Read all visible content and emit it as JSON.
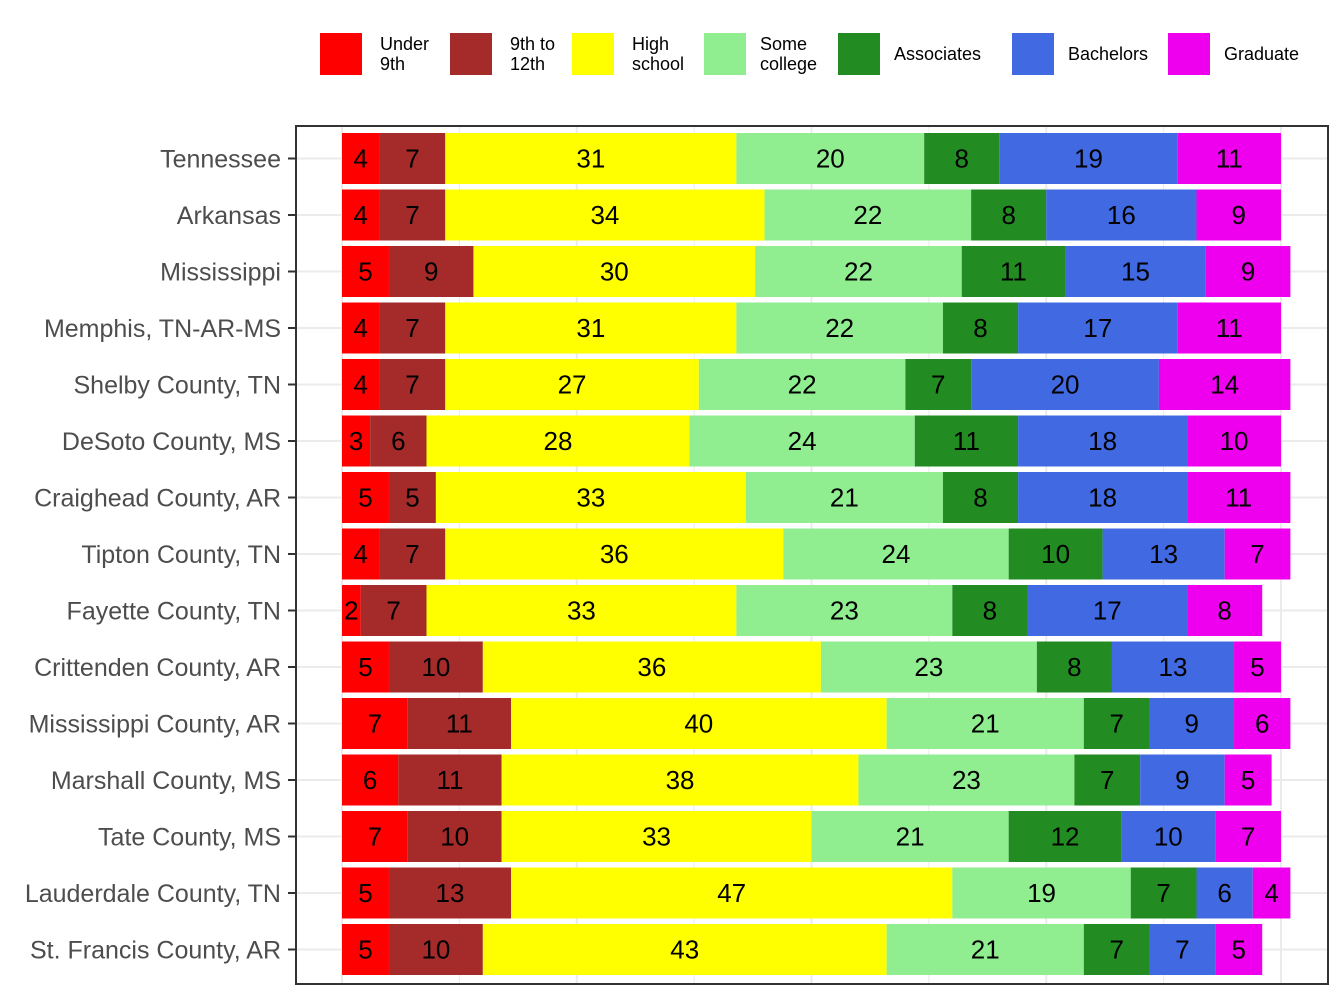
{
  "legend": {
    "items": [
      {
        "label": "Under\n9th",
        "color": "#ff0000"
      },
      {
        "label": "9th to\n12th",
        "color": "#a52a2a"
      },
      {
        "label": "High\nschool",
        "color": "#ffff00"
      },
      {
        "label": "Some\ncollege",
        "color": "#90ee90"
      },
      {
        "label": "Associates",
        "color": "#228b22"
      },
      {
        "label": "Bachelors",
        "color": "#4169e1"
      },
      {
        "label": "Graduate",
        "color": "#ee00ee"
      }
    ]
  },
  "chart_data": {
    "type": "bar",
    "orientation": "horizontal",
    "stacked": true,
    "title": "",
    "xlabel": "",
    "ylabel": "",
    "xlim": [
      0,
      100
    ],
    "grid": true,
    "legend_position": "top",
    "categories": [
      "Tennessee",
      "Arkansas",
      "Mississippi",
      "Memphis, TN-AR-MS",
      "Shelby County, TN",
      "DeSoto County, MS",
      "Craighead County, AR",
      "Tipton County, TN",
      "Fayette County, TN",
      "Crittenden County, AR",
      "Mississippi County, AR",
      "Marshall County, MS",
      "Tate County, MS",
      "Lauderdale County, TN",
      "St. Francis County, AR"
    ],
    "series": [
      {
        "name": "Under 9th",
        "color": "#ff0000",
        "values": [
          4,
          4,
          5,
          4,
          4,
          3,
          5,
          4,
          2,
          5,
          7,
          6,
          7,
          5,
          5
        ]
      },
      {
        "name": "9th to 12th",
        "color": "#a52a2a",
        "values": [
          7,
          7,
          9,
          7,
          7,
          6,
          5,
          7,
          7,
          10,
          11,
          11,
          10,
          13,
          10
        ]
      },
      {
        "name": "High school",
        "color": "#ffff00",
        "values": [
          31,
          34,
          30,
          31,
          27,
          28,
          33,
          36,
          33,
          36,
          40,
          38,
          33,
          47,
          43
        ]
      },
      {
        "name": "Some college",
        "color": "#90ee90",
        "values": [
          20,
          22,
          22,
          22,
          22,
          24,
          21,
          24,
          23,
          23,
          21,
          23,
          21,
          19,
          21
        ]
      },
      {
        "name": "Associates",
        "color": "#228b22",
        "values": [
          8,
          8,
          11,
          8,
          7,
          11,
          8,
          10,
          8,
          8,
          7,
          7,
          12,
          7,
          7
        ]
      },
      {
        "name": "Bachelors",
        "color": "#4169e1",
        "values": [
          19,
          16,
          15,
          17,
          20,
          18,
          18,
          13,
          17,
          13,
          9,
          9,
          10,
          6,
          7
        ]
      },
      {
        "name": "Graduate",
        "color": "#ee00ee",
        "values": [
          11,
          9,
          9,
          11,
          14,
          10,
          11,
          7,
          8,
          5,
          6,
          5,
          7,
          4,
          5
        ]
      }
    ]
  }
}
